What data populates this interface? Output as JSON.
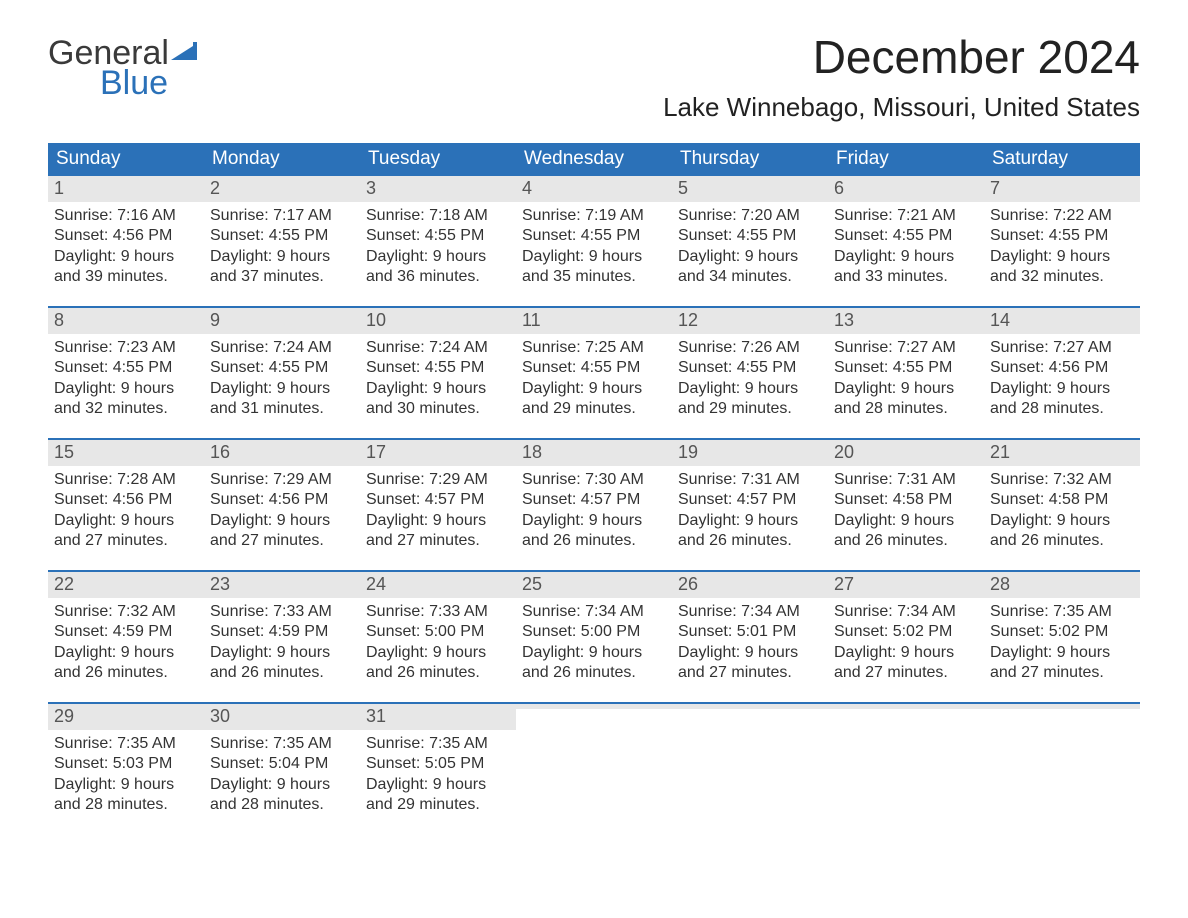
{
  "brand": {
    "top": "General",
    "bottom": "Blue",
    "flag_color": "#2b71b8"
  },
  "title": "December 2024",
  "location": "Lake Winnebago, Missouri, United States",
  "colors": {
    "header_bg": "#2b71b8",
    "header_text": "#ffffff",
    "daynum_bg": "#e7e7e7",
    "body_text": "#333333",
    "rule": "#2b71b8"
  },
  "weekdays": [
    "Sunday",
    "Monday",
    "Tuesday",
    "Wednesday",
    "Thursday",
    "Friday",
    "Saturday"
  ],
  "weeks": [
    [
      {
        "n": "1",
        "sunrise": "7:16 AM",
        "sunset": "4:56 PM",
        "dl": "9 hours and 39 minutes."
      },
      {
        "n": "2",
        "sunrise": "7:17 AM",
        "sunset": "4:55 PM",
        "dl": "9 hours and 37 minutes."
      },
      {
        "n": "3",
        "sunrise": "7:18 AM",
        "sunset": "4:55 PM",
        "dl": "9 hours and 36 minutes."
      },
      {
        "n": "4",
        "sunrise": "7:19 AM",
        "sunset": "4:55 PM",
        "dl": "9 hours and 35 minutes."
      },
      {
        "n": "5",
        "sunrise": "7:20 AM",
        "sunset": "4:55 PM",
        "dl": "9 hours and 34 minutes."
      },
      {
        "n": "6",
        "sunrise": "7:21 AM",
        "sunset": "4:55 PM",
        "dl": "9 hours and 33 minutes."
      },
      {
        "n": "7",
        "sunrise": "7:22 AM",
        "sunset": "4:55 PM",
        "dl": "9 hours and 32 minutes."
      }
    ],
    [
      {
        "n": "8",
        "sunrise": "7:23 AM",
        "sunset": "4:55 PM",
        "dl": "9 hours and 32 minutes."
      },
      {
        "n": "9",
        "sunrise": "7:24 AM",
        "sunset": "4:55 PM",
        "dl": "9 hours and 31 minutes."
      },
      {
        "n": "10",
        "sunrise": "7:24 AM",
        "sunset": "4:55 PM",
        "dl": "9 hours and 30 minutes."
      },
      {
        "n": "11",
        "sunrise": "7:25 AM",
        "sunset": "4:55 PM",
        "dl": "9 hours and 29 minutes."
      },
      {
        "n": "12",
        "sunrise": "7:26 AM",
        "sunset": "4:55 PM",
        "dl": "9 hours and 29 minutes."
      },
      {
        "n": "13",
        "sunrise": "7:27 AM",
        "sunset": "4:55 PM",
        "dl": "9 hours and 28 minutes."
      },
      {
        "n": "14",
        "sunrise": "7:27 AM",
        "sunset": "4:56 PM",
        "dl": "9 hours and 28 minutes."
      }
    ],
    [
      {
        "n": "15",
        "sunrise": "7:28 AM",
        "sunset": "4:56 PM",
        "dl": "9 hours and 27 minutes."
      },
      {
        "n": "16",
        "sunrise": "7:29 AM",
        "sunset": "4:56 PM",
        "dl": "9 hours and 27 minutes."
      },
      {
        "n": "17",
        "sunrise": "7:29 AM",
        "sunset": "4:57 PM",
        "dl": "9 hours and 27 minutes."
      },
      {
        "n": "18",
        "sunrise": "7:30 AM",
        "sunset": "4:57 PM",
        "dl": "9 hours and 26 minutes."
      },
      {
        "n": "19",
        "sunrise": "7:31 AM",
        "sunset": "4:57 PM",
        "dl": "9 hours and 26 minutes."
      },
      {
        "n": "20",
        "sunrise": "7:31 AM",
        "sunset": "4:58 PM",
        "dl": "9 hours and 26 minutes."
      },
      {
        "n": "21",
        "sunrise": "7:32 AM",
        "sunset": "4:58 PM",
        "dl": "9 hours and 26 minutes."
      }
    ],
    [
      {
        "n": "22",
        "sunrise": "7:32 AM",
        "sunset": "4:59 PM",
        "dl": "9 hours and 26 minutes."
      },
      {
        "n": "23",
        "sunrise": "7:33 AM",
        "sunset": "4:59 PM",
        "dl": "9 hours and 26 minutes."
      },
      {
        "n": "24",
        "sunrise": "7:33 AM",
        "sunset": "5:00 PM",
        "dl": "9 hours and 26 minutes."
      },
      {
        "n": "25",
        "sunrise": "7:34 AM",
        "sunset": "5:00 PM",
        "dl": "9 hours and 26 minutes."
      },
      {
        "n": "26",
        "sunrise": "7:34 AM",
        "sunset": "5:01 PM",
        "dl": "9 hours and 27 minutes."
      },
      {
        "n": "27",
        "sunrise": "7:34 AM",
        "sunset": "5:02 PM",
        "dl": "9 hours and 27 minutes."
      },
      {
        "n": "28",
        "sunrise": "7:35 AM",
        "sunset": "5:02 PM",
        "dl": "9 hours and 27 minutes."
      }
    ],
    [
      {
        "n": "29",
        "sunrise": "7:35 AM",
        "sunset": "5:03 PM",
        "dl": "9 hours and 28 minutes."
      },
      {
        "n": "30",
        "sunrise": "7:35 AM",
        "sunset": "5:04 PM",
        "dl": "9 hours and 28 minutes."
      },
      {
        "n": "31",
        "sunrise": "7:35 AM",
        "sunset": "5:05 PM",
        "dl": "9 hours and 29 minutes."
      },
      {
        "empty": true
      },
      {
        "empty": true
      },
      {
        "empty": true
      },
      {
        "empty": true
      }
    ]
  ],
  "labels": {
    "sunrise_prefix": "Sunrise: ",
    "sunset_prefix": "Sunset: ",
    "daylight_prefix": "Daylight: "
  }
}
